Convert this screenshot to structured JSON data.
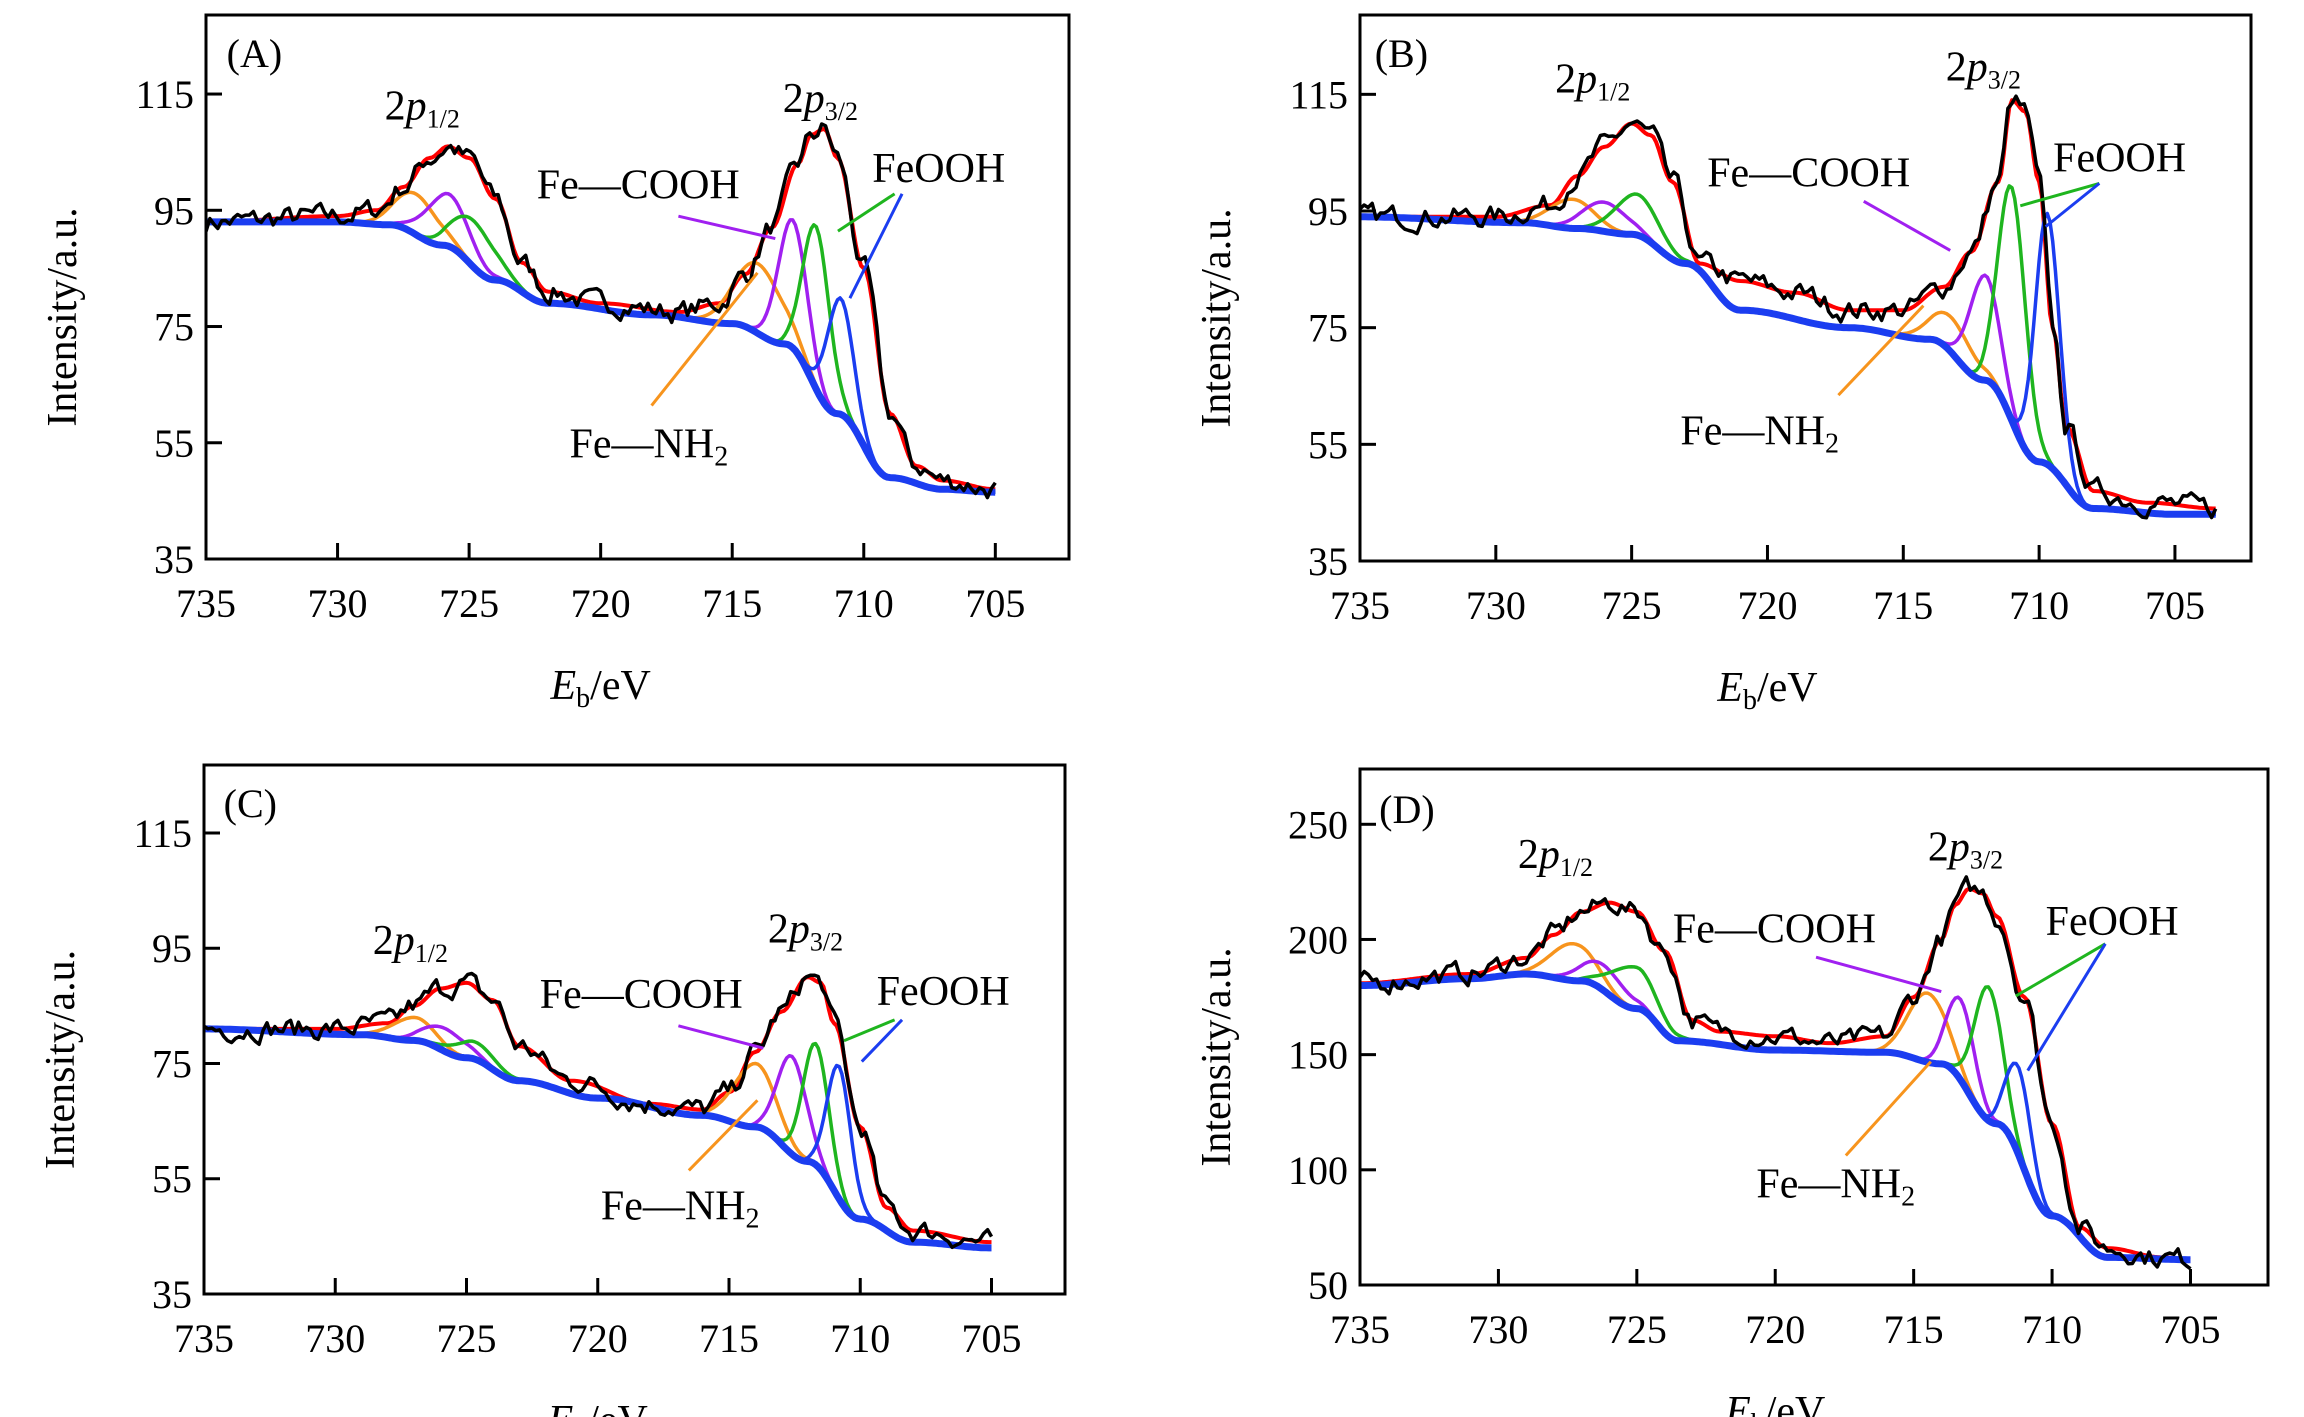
{
  "chart_data": [
    {
      "type": "line",
      "panel_label": "(A)",
      "xlabel": {
        "italic": "E",
        "sub": "b",
        "rest": "/eV"
      },
      "ylabel": "Intensity/a.u.",
      "xlim": [
        735,
        702.2
      ],
      "ylim": [
        35,
        128.6
      ],
      "x_ticks": [
        735,
        730,
        725,
        720,
        715,
        710,
        705
      ],
      "y_ticks": [
        35,
        55,
        75,
        95,
        115
      ],
      "grid": false,
      "annotations": {
        "p12": {
          "lead": "2",
          "italic": "p",
          "sub": "1/2"
        },
        "p32": {
          "lead": "2",
          "italic": "p",
          "sub": "3/2"
        },
        "cooh": "Fe—COOH",
        "feooh": "FeOOH",
        "nh2": {
          "text": "Fe—NH",
          "sub": "2"
        }
      },
      "background": [
        [
          735,
          93
        ],
        [
          730,
          93
        ],
        [
          728,
          92.5
        ],
        [
          726,
          89
        ],
        [
          724,
          83
        ],
        [
          722,
          79
        ],
        [
          718,
          77
        ],
        [
          715,
          75.5
        ],
        [
          713,
          72
        ],
        [
          711,
          60
        ],
        [
          709,
          49
        ],
        [
          707,
          47
        ],
        [
          705,
          46.5
        ]
      ],
      "envelope": [
        [
          735,
          93
        ],
        [
          730,
          94
        ],
        [
          728.5,
          95
        ],
        [
          727.5,
          99
        ],
        [
          726.5,
          104
        ],
        [
          725.8,
          106
        ],
        [
          725,
          104
        ],
        [
          724,
          97
        ],
        [
          723,
          86
        ],
        [
          722,
          81
        ],
        [
          720,
          79
        ],
        [
          717,
          77.5
        ],
        [
          715.5,
          79
        ],
        [
          714.5,
          84
        ],
        [
          713.5,
          92
        ],
        [
          712.5,
          103
        ],
        [
          712,
          108
        ],
        [
          711.5,
          109
        ],
        [
          711,
          104
        ],
        [
          710,
          85
        ],
        [
          709,
          60
        ],
        [
          708,
          51
        ],
        [
          707,
          48.5
        ],
        [
          705,
          47
        ]
      ],
      "components": [
        {
          "color": "#f7941d",
          "center": 727,
          "height": 7,
          "sigma": 0.8
        },
        {
          "color": "#a020f0",
          "center": 725.8,
          "height": 9,
          "sigma": 0.8
        },
        {
          "color": "#1fb51f",
          "center": 724.8,
          "height": 8,
          "sigma": 0.8
        },
        {
          "color": "#f7941d",
          "center": 714,
          "height": 12,
          "sigma": 0.9
        },
        {
          "color": "#a020f0",
          "center": 712.7,
          "height": 22,
          "sigma": 0.55
        },
        {
          "color": "#1fb51f",
          "center": 711.8,
          "height": 28,
          "sigma": 0.5
        },
        {
          "color": "#1b3df0",
          "center": 710.9,
          "height": 20,
          "sigma": 0.5
        }
      ]
    },
    {
      "type": "line",
      "panel_label": "(B)",
      "xlabel": {
        "italic": "E",
        "sub": "b",
        "rest": "/eV"
      },
      "ylabel": "Intensity/a.u.",
      "xlim": [
        735,
        702.2
      ],
      "ylim": [
        35,
        128.6
      ],
      "x_ticks": [
        735,
        730,
        725,
        720,
        715,
        710,
        705
      ],
      "y_ticks": [
        35,
        55,
        75,
        95,
        115
      ],
      "grid": false,
      "annotations": {
        "p12": {
          "lead": "2",
          "italic": "p",
          "sub": "1/2"
        },
        "p32": {
          "lead": "2",
          "italic": "p",
          "sub": "3/2"
        },
        "cooh": "Fe—COOH",
        "feooh": "FeOOH",
        "nh2": {
          "text": "Fe—NH",
          "sub": "2"
        }
      },
      "background": [
        [
          735,
          94
        ],
        [
          729,
          93
        ],
        [
          727,
          92
        ],
        [
          725,
          91
        ],
        [
          723,
          86
        ],
        [
          721,
          78
        ],
        [
          717,
          75
        ],
        [
          714,
          73
        ],
        [
          712,
          66
        ],
        [
          710,
          52
        ],
        [
          708,
          44
        ],
        [
          705,
          43
        ],
        [
          703.5,
          43
        ]
      ],
      "envelope": [
        [
          735,
          94
        ],
        [
          730,
          94
        ],
        [
          728,
          96
        ],
        [
          727,
          101
        ],
        [
          726,
          106
        ],
        [
          725,
          110
        ],
        [
          724.3,
          108
        ],
        [
          723.5,
          100
        ],
        [
          722.5,
          86
        ],
        [
          721,
          83
        ],
        [
          719,
          81
        ],
        [
          717,
          78
        ],
        [
          715,
          78
        ],
        [
          713.5,
          82
        ],
        [
          712.5,
          88
        ],
        [
          711.5,
          100
        ],
        [
          711,
          114
        ],
        [
          710.5,
          112
        ],
        [
          710,
          100
        ],
        [
          709.5,
          75
        ],
        [
          709,
          58
        ],
        [
          708,
          47
        ],
        [
          706,
          45
        ],
        [
          703.5,
          44
        ]
      ],
      "components": [
        {
          "color": "#f7941d",
          "center": 727.2,
          "height": 5,
          "sigma": 0.8
        },
        {
          "color": "#a020f0",
          "center": 726,
          "height": 5,
          "sigma": 0.8
        },
        {
          "color": "#1fb51f",
          "center": 724.8,
          "height": 7,
          "sigma": 0.8
        },
        {
          "color": "#f7941d",
          "center": 713.2,
          "height": 6,
          "sigma": 0.8
        },
        {
          "color": "#a020f0",
          "center": 712,
          "height": 18,
          "sigma": 0.55
        },
        {
          "color": "#1fb51f",
          "center": 711,
          "height": 40,
          "sigma": 0.5
        },
        {
          "color": "#1b3df0",
          "center": 709.7,
          "height": 43,
          "sigma": 0.45
        }
      ]
    },
    {
      "type": "line",
      "panel_label": "(C)",
      "xlabel": {
        "italic": "E",
        "sub": "b",
        "rest": "/eV"
      },
      "ylabel": "Intensity/a.u.",
      "xlim": [
        735,
        702.2
      ],
      "ylim": [
        35,
        126.8
      ],
      "x_ticks": [
        735,
        730,
        725,
        720,
        715,
        710,
        705
      ],
      "y_ticks": [
        35,
        55,
        75,
        95,
        115
      ],
      "grid": false,
      "annotations": {
        "p12": {
          "lead": "2",
          "italic": "p",
          "sub": "1/2"
        },
        "p32": {
          "lead": "2",
          "italic": "p",
          "sub": "3/2"
        },
        "cooh": "Fe—COOH",
        "feooh": "FeOOH",
        "nh2": {
          "text": "Fe—NH",
          "sub": "2"
        }
      },
      "background": [
        [
          735,
          81
        ],
        [
          729,
          80
        ],
        [
          727,
          79
        ],
        [
          725,
          76
        ],
        [
          723,
          72
        ],
        [
          720,
          69
        ],
        [
          716,
          66
        ],
        [
          714,
          64
        ],
        [
          712,
          58
        ],
        [
          710,
          48
        ],
        [
          708,
          44
        ],
        [
          705,
          43
        ]
      ],
      "envelope": [
        [
          735,
          81
        ],
        [
          730,
          81
        ],
        [
          728,
          82
        ],
        [
          727,
          85
        ],
        [
          726,
          88
        ],
        [
          725,
          89
        ],
        [
          724,
          86
        ],
        [
          723,
          78
        ],
        [
          721,
          72
        ],
        [
          718,
          68
        ],
        [
          716,
          67
        ],
        [
          715,
          70
        ],
        [
          714,
          77
        ],
        [
          713,
          84
        ],
        [
          712,
          90
        ],
        [
          711.5,
          89
        ],
        [
          711,
          82
        ],
        [
          710,
          64
        ],
        [
          709,
          50
        ],
        [
          708,
          46
        ],
        [
          705,
          44
        ]
      ],
      "components": [
        {
          "color": "#f7941d",
          "center": 727,
          "height": 4,
          "sigma": 0.8
        },
        {
          "color": "#a020f0",
          "center": 725.8,
          "height": 4,
          "sigma": 0.8
        },
        {
          "color": "#1fb51f",
          "center": 724.7,
          "height": 3,
          "sigma": 0.8
        },
        {
          "color": "#f7941d",
          "center": 714,
          "height": 11,
          "sigma": 0.8
        },
        {
          "color": "#a020f0",
          "center": 712.6,
          "height": 17,
          "sigma": 0.55
        },
        {
          "color": "#1fb51f",
          "center": 711.7,
          "height": 21,
          "sigma": 0.5
        },
        {
          "color": "#1b3df0",
          "center": 710.8,
          "height": 23,
          "sigma": 0.45
        }
      ]
    },
    {
      "type": "line",
      "panel_label": "(D)",
      "xlabel": {
        "italic": "E",
        "sub": "b",
        "rest": "/eV"
      },
      "ylabel": "Intensity/a.u.",
      "xlim": [
        735,
        702.2
      ],
      "ylim": [
        50,
        274
      ],
      "x_ticks": [
        735,
        730,
        725,
        720,
        715,
        710,
        705
      ],
      "y_ticks": [
        50,
        100,
        150,
        200,
        250
      ],
      "grid": false,
      "annotations": {
        "p12": {
          "lead": "2",
          "italic": "p",
          "sub": "1/2"
        },
        "p32": {
          "lead": "2",
          "italic": "p",
          "sub": "3/2"
        },
        "cooh": "Fe—COOH",
        "feooh": "FeOOH",
        "nh2": {
          "text": "Fe—NH",
          "sub": "2"
        }
      },
      "background": [
        [
          735,
          180
        ],
        [
          731,
          183
        ],
        [
          729,
          185
        ],
        [
          727,
          182
        ],
        [
          725,
          170
        ],
        [
          723.5,
          156
        ],
        [
          720,
          152
        ],
        [
          716,
          151
        ],
        [
          714,
          146
        ],
        [
          712,
          120
        ],
        [
          710,
          80
        ],
        [
          708,
          62
        ],
        [
          705,
          61
        ]
      ],
      "envelope": [
        [
          735,
          181
        ],
        [
          731,
          185
        ],
        [
          729,
          192
        ],
        [
          728,
          202
        ],
        [
          727,
          212
        ],
        [
          726,
          216
        ],
        [
          725,
          212
        ],
        [
          724,
          195
        ],
        [
          723,
          165
        ],
        [
          722,
          160
        ],
        [
          720,
          158
        ],
        [
          718,
          155
        ],
        [
          716,
          158
        ],
        [
          715,
          175
        ],
        [
          714,
          200
        ],
        [
          713.5,
          215
        ],
        [
          713,
          222
        ],
        [
          712.5,
          220
        ],
        [
          712,
          210
        ],
        [
          711,
          175
        ],
        [
          710,
          120
        ],
        [
          709,
          75
        ],
        [
          708,
          66
        ],
        [
          706,
          62
        ],
        [
          705,
          61
        ]
      ],
      "components": [
        {
          "color": "#f7941d",
          "center": 727.3,
          "height": 16,
          "sigma": 0.8
        },
        {
          "color": "#a020f0",
          "center": 726.2,
          "height": 11,
          "sigma": 0.8
        },
        {
          "color": "#1fb51f",
          "center": 725.1,
          "height": 18,
          "sigma": 0.8
        },
        {
          "color": "#f7941d",
          "center": 714.5,
          "height": 30,
          "sigma": 0.7
        },
        {
          "color": "#a020f0",
          "center": 713.3,
          "height": 35,
          "sigma": 0.5
        },
        {
          "color": "#1fb51f",
          "center": 712.3,
          "height": 58,
          "sigma": 0.5
        },
        {
          "color": "#1b3df0",
          "center": 711.2,
          "height": 38,
          "sigma": 0.45
        }
      ]
    }
  ],
  "colors": {
    "raw": "#000000",
    "envelope": "#ff0000",
    "background": "#1b3df0"
  }
}
